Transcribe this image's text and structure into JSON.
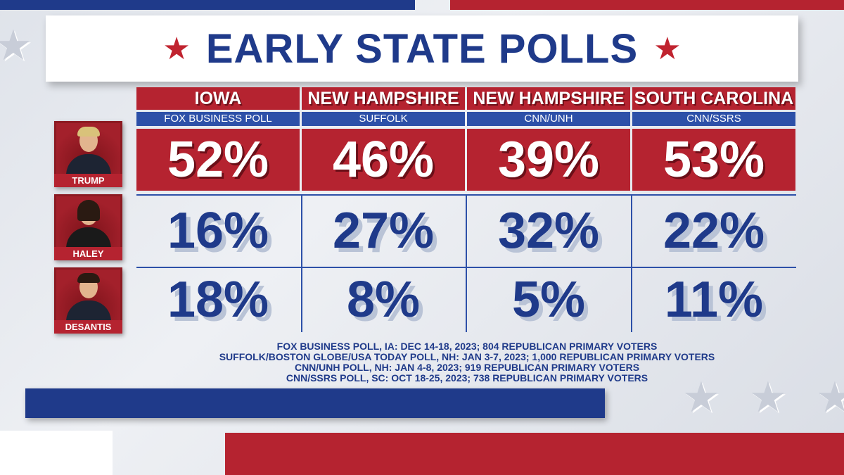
{
  "title": "EARLY STATE POLLS",
  "colors": {
    "red": "#b52330",
    "blue": "#1f3a8a",
    "poll_blue": "#2d50a8"
  },
  "columns": [
    {
      "state": "IOWA",
      "poll": "FOX BUSINESS POLL"
    },
    {
      "state": "NEW HAMPSHIRE",
      "poll": "SUFFOLK"
    },
    {
      "state": "NEW HAMPSHIRE",
      "poll": "CNN/UNH"
    },
    {
      "state": "SOUTH CAROLINA",
      "poll": "CNN/SSRS"
    }
  ],
  "candidates": [
    {
      "name": "TRUMP",
      "values": [
        "52%",
        "46%",
        "39%",
        "53%"
      ]
    },
    {
      "name": "HALEY",
      "values": [
        "16%",
        "27%",
        "32%",
        "22%"
      ]
    },
    {
      "name": "DESANTIS",
      "values": [
        "18%",
        "8%",
        "5%",
        "11%"
      ]
    }
  ],
  "footnotes": [
    "FOX BUSINESS POLL, IA: DEC 14-18, 2023; 804 REPUBLICAN PRIMARY VOTERS",
    "SUFFOLK/BOSTON GLOBE/USA TODAY POLL, NH: JAN 3-7, 2023; 1,000 REPUBLICAN PRIMARY VOTERS",
    "CNN/UNH POLL, NH: JAN 4-8, 2023; 919 REPUBLICAN PRIMARY VOTERS",
    "CNN/SSRS POLL, SC: OCT 18-25, 2023; 738 REPUBLICAN PRIMARY VOTERS"
  ],
  "chart_data": {
    "type": "table",
    "title": "EARLY STATE POLLS",
    "columns": [
      "IOWA",
      "NEW HAMPSHIRE",
      "NEW HAMPSHIRE",
      "SOUTH CAROLINA"
    ],
    "column_polls": [
      "FOX BUSINESS POLL",
      "SUFFOLK",
      "CNN/UNH",
      "CNN/SSRS"
    ],
    "series": [
      {
        "name": "TRUMP",
        "values": [
          52,
          46,
          39,
          53
        ]
      },
      {
        "name": "HALEY",
        "values": [
          16,
          27,
          32,
          22
        ]
      },
      {
        "name": "DESANTIS",
        "values": [
          18,
          8,
          5,
          11
        ]
      }
    ]
  }
}
